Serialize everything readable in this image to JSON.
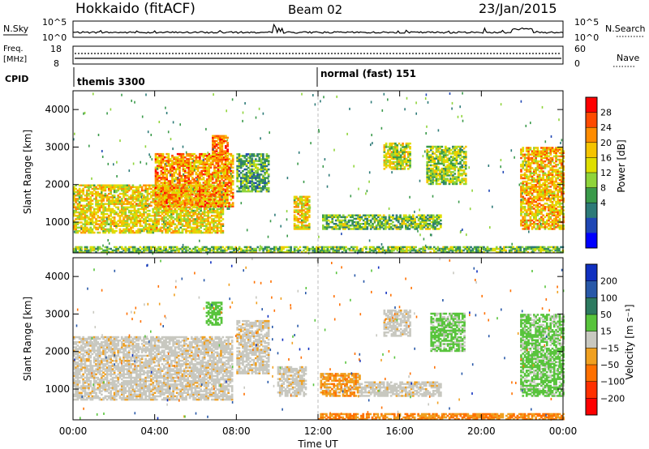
{
  "header": {
    "station": "Hokkaido (fitACF)",
    "beam": "Beam 02",
    "date": "23/Jan/2015"
  },
  "top_panels": {
    "nsky_label": "N.Sky",
    "nsearch_label": "N.Search",
    "nsky_ticks": [
      "10^5",
      "10^0"
    ],
    "nsearch_ticks": [
      "10^5",
      "10^0"
    ],
    "freq_label_1": "Freq.",
    "freq_label_2": "[MHz]",
    "freq_ticks": [
      "18",
      "8"
    ],
    "nave_ticks": [
      "60",
      "0"
    ],
    "nave_label": "Nave",
    "cpid_label": "CPID",
    "cpid_segments": [
      {
        "name": "themis 3300",
        "start_hour": 0
      },
      {
        "name": "normal (fast) 151",
        "start_hour": 12
      }
    ]
  },
  "x_axis": {
    "label": "Time UT",
    "ticks": [
      "00:00",
      "04:00",
      "08:00",
      "12:00",
      "16:00",
      "20:00",
      "00:00"
    ]
  },
  "chart_data": [
    {
      "type": "heatmap",
      "name": "power",
      "xlabel": "Time UT",
      "ylabel": "Slant Range [km]",
      "xlim_hours": [
        0,
        24
      ],
      "ylim": [
        180,
        4500
      ],
      "yticks": [
        "1000",
        "2000",
        "3000",
        "4000"
      ],
      "colorbar_label": "Power [dB]",
      "colorbar_ticks": [
        "28",
        "24",
        "20",
        "16",
        "12",
        "8",
        "4"
      ],
      "colorbar_colors": [
        "#ff0000",
        "#ff4a00",
        "#ff8c00",
        "#f5c400",
        "#dede00",
        "#8fd43a",
        "#3a9a4a",
        "#2d7a78",
        "#1f47b5",
        "#0000ff"
      ],
      "echo_regions": [
        {
          "t0": 0.0,
          "t1": 7.3,
          "r0": 700,
          "r1": 2000,
          "level": 18
        },
        {
          "t0": 4.0,
          "t1": 7.8,
          "r0": 1400,
          "r1": 2800,
          "level": 22
        },
        {
          "t0": 6.8,
          "t1": 7.6,
          "r0": 2600,
          "r1": 3300,
          "level": 24
        },
        {
          "t0": 8.0,
          "t1": 9.6,
          "r0": 1800,
          "r1": 2800,
          "level": 10
        },
        {
          "t0": 10.8,
          "t1": 11.6,
          "r0": 800,
          "r1": 1700,
          "level": 18
        },
        {
          "t0": 12.2,
          "t1": 18.0,
          "r0": 800,
          "r1": 1200,
          "level": 12
        },
        {
          "t0": 15.2,
          "t1": 16.5,
          "r0": 2400,
          "r1": 3100,
          "level": 16
        },
        {
          "t0": 17.3,
          "t1": 19.2,
          "r0": 2000,
          "r1": 3000,
          "level": 14
        },
        {
          "t0": 21.9,
          "t1": 24.0,
          "r0": 800,
          "r1": 3000,
          "level": 20
        },
        {
          "t0": 0.0,
          "t1": 24.0,
          "r0": 180,
          "r1": 350,
          "level": 12
        }
      ]
    },
    {
      "type": "heatmap",
      "name": "velocity",
      "xlabel": "Time UT",
      "ylabel": "Slant Range [km]",
      "xlim_hours": [
        0,
        24
      ],
      "ylim": [
        180,
        4500
      ],
      "yticks": [
        "1000",
        "2000",
        "3000",
        "4000"
      ],
      "colorbar_label": "Velocity [m s⁻¹]",
      "colorbar_ticks": [
        "200",
        "100",
        "50",
        "15",
        "−15",
        "−50",
        "−100",
        "−200"
      ],
      "colorbar_colors": [
        "#1030c0",
        "#2858a8",
        "#2d7a60",
        "#58c43c",
        "#c8c8c0",
        "#f0a020",
        "#ff7000",
        "#ff3000",
        "#ff0000"
      ],
      "echo_regions": [
        {
          "t0": 0.0,
          "t1": 7.8,
          "r0": 700,
          "r1": 2400,
          "level": 0
        },
        {
          "t0": 6.5,
          "t1": 7.3,
          "r0": 2700,
          "r1": 3300,
          "level": 40
        },
        {
          "t0": 8.0,
          "t1": 9.6,
          "r0": 1400,
          "r1": 2800,
          "level": 0
        },
        {
          "t0": 10.0,
          "t1": 11.4,
          "r0": 800,
          "r1": 1600,
          "level": 0
        },
        {
          "t0": 12.1,
          "t1": 14.0,
          "r0": 800,
          "r1": 1400,
          "level": -30
        },
        {
          "t0": 14.0,
          "t1": 18.0,
          "r0": 800,
          "r1": 1200,
          "level": 0
        },
        {
          "t0": 15.2,
          "t1": 16.5,
          "r0": 2400,
          "r1": 3100,
          "level": 0
        },
        {
          "t0": 17.5,
          "t1": 19.2,
          "r0": 2000,
          "r1": 3000,
          "level": 30
        },
        {
          "t0": 21.9,
          "t1": 24.0,
          "r0": 800,
          "r1": 3000,
          "level": 30
        },
        {
          "t0": 12.0,
          "t1": 24.0,
          "r0": 180,
          "r1": 350,
          "level": -40
        }
      ]
    }
  ]
}
